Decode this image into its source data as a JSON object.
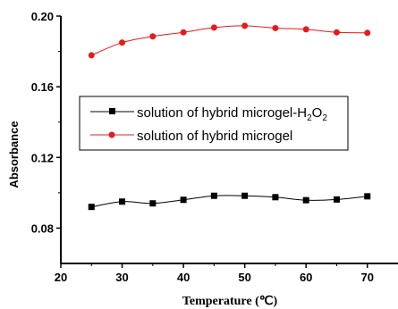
{
  "chart_data": {
    "type": "line",
    "xlabel": "Temperature (℃)",
    "ylabel": "Absorbance",
    "xlim": [
      20,
      75
    ],
    "ylim": [
      0.06,
      0.2
    ],
    "x_ticks": [
      20,
      30,
      40,
      50,
      60,
      70
    ],
    "y_ticks": [
      0.08,
      0.12,
      0.16,
      0.2
    ],
    "x_tick_labels": [
      "20",
      "30",
      "40",
      "50",
      "60",
      "70"
    ],
    "y_tick_labels": [
      "0.08",
      "0.12",
      "0.16",
      "0.20"
    ],
    "grid": false,
    "legend_position": "center-right",
    "x": [
      25,
      30,
      35,
      40,
      45,
      50,
      55,
      60,
      65,
      70
    ],
    "series": [
      {
        "name": "solution of hybrid microgel-H2O2",
        "legend_main": "solution of hybrid microgel-H",
        "legend_sub1": "2",
        "legend_mid": "O",
        "legend_sub2": "2",
        "color": "#000000",
        "marker": "square",
        "values": [
          0.092,
          0.095,
          0.094,
          0.096,
          0.0983,
          0.0983,
          0.0975,
          0.0958,
          0.0962,
          0.098
        ]
      },
      {
        "name": "solution of hybrid microgel",
        "legend_main": "solution of hybrid microgel",
        "color": "#e8191c",
        "marker": "circle",
        "values": [
          0.1778,
          0.185,
          0.1885,
          0.1908,
          0.1935,
          0.1945,
          0.1932,
          0.1925,
          0.1908,
          0.1905
        ]
      }
    ]
  }
}
